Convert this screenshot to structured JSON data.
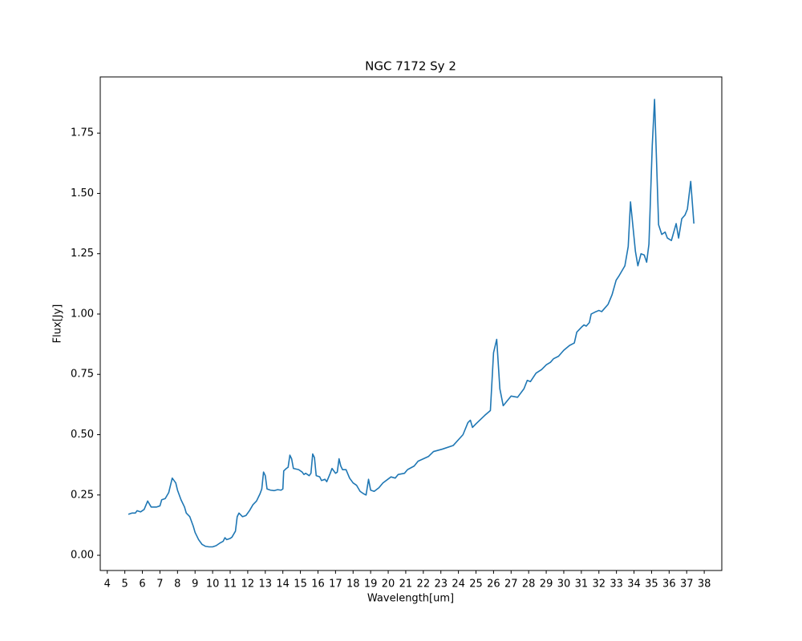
{
  "chart_data": {
    "type": "line",
    "title": "NGC 7172 Sy 2",
    "x_label": "Wavelength[um]",
    "y_label": "Flux[Jy]",
    "color": "#1f77b4",
    "xlim": [
      3.6,
      39.0
    ],
    "ylim": [
      -0.063,
      1.983
    ],
    "xticks": [
      4,
      5,
      6,
      7,
      8,
      9,
      10,
      11,
      12,
      13,
      14,
      15,
      16,
      17,
      18,
      19,
      20,
      21,
      22,
      23,
      24,
      25,
      26,
      27,
      28,
      29,
      30,
      31,
      32,
      33,
      34,
      35,
      36,
      37,
      38
    ],
    "yticks": [
      {
        "value": 0,
        "label": "0.00"
      },
      {
        "value": 0.25,
        "label": "0.25"
      },
      {
        "value": 0.5,
        "label": "0.50"
      },
      {
        "value": 0.75,
        "label": "0.75"
      },
      {
        "value": 1,
        "label": "1.00"
      },
      {
        "value": 1.25,
        "label": "1.25"
      },
      {
        "value": 1.5,
        "label": "1.50"
      },
      {
        "value": 1.75,
        "label": "1.75"
      }
    ],
    "x": [
      5.2,
      5.4,
      5.6,
      5.7,
      5.9,
      6.1,
      6.3,
      6.5,
      6.8,
      7.0,
      7.1,
      7.3,
      7.5,
      7.6,
      7.7,
      7.9,
      8.0,
      8.2,
      8.4,
      8.5,
      8.7,
      8.9,
      9.0,
      9.2,
      9.4,
      9.6,
      9.8,
      10.0,
      10.2,
      10.4,
      10.6,
      10.7,
      10.8,
      11.0,
      11.1,
      11.3,
      11.4,
      11.5,
      11.7,
      11.9,
      12.1,
      12.3,
      12.5,
      12.7,
      12.8,
      12.9,
      13.0,
      13.1,
      13.3,
      13.5,
      13.7,
      13.9,
      14.0,
      14.05,
      14.2,
      14.3,
      14.4,
      14.5,
      14.6,
      14.9,
      15.1,
      15.2,
      15.3,
      15.5,
      15.6,
      15.7,
      15.8,
      15.9,
      16.1,
      16.2,
      16.4,
      16.5,
      16.7,
      16.8,
      17.0,
      17.1,
      17.2,
      17.3,
      17.4,
      17.6,
      17.8,
      18.0,
      18.2,
      18.4,
      18.6,
      18.74,
      18.88,
      19.0,
      19.2,
      19.47,
      19.7,
      20.16,
      20.4,
      20.57,
      20.93,
      21.1,
      21.48,
      21.7,
      22.0,
      22.3,
      22.58,
      23.08,
      23.7,
      24.26,
      24.54,
      24.68,
      24.8,
      25.0,
      25.5,
      25.82,
      26.0,
      26.18,
      26.36,
      26.55,
      27.0,
      27.37,
      27.73,
      27.92,
      28.1,
      28.42,
      28.74,
      29.01,
      29.24,
      29.42,
      29.7,
      30.0,
      30.33,
      30.6,
      30.74,
      31.0,
      31.15,
      31.28,
      31.46,
      31.56,
      31.83,
      32.0,
      32.16,
      32.34,
      32.52,
      32.75,
      32.98,
      33.16,
      33.48,
      33.67,
      33.8,
      34.08,
      34.22,
      34.4,
      34.58,
      34.72,
      34.85,
      35.04,
      35.17,
      35.4,
      35.58,
      35.77,
      35.9,
      36.13,
      36.4,
      36.54,
      36.72,
      36.9,
      37.04,
      37.23,
      37.41
    ],
    "values": [
      0.17,
      0.175,
      0.175,
      0.185,
      0.18,
      0.19,
      0.225,
      0.2,
      0.2,
      0.205,
      0.23,
      0.235,
      0.26,
      0.29,
      0.32,
      0.3,
      0.27,
      0.23,
      0.2,
      0.175,
      0.16,
      0.12,
      0.095,
      0.065,
      0.045,
      0.037,
      0.035,
      0.035,
      0.04,
      0.05,
      0.058,
      0.073,
      0.065,
      0.07,
      0.075,
      0.1,
      0.16,
      0.175,
      0.16,
      0.165,
      0.185,
      0.21,
      0.225,
      0.255,
      0.275,
      0.345,
      0.33,
      0.275,
      0.27,
      0.268,
      0.272,
      0.27,
      0.275,
      0.35,
      0.36,
      0.365,
      0.415,
      0.4,
      0.36,
      0.355,
      0.345,
      0.335,
      0.34,
      0.33,
      0.34,
      0.42,
      0.405,
      0.33,
      0.325,
      0.31,
      0.315,
      0.305,
      0.34,
      0.36,
      0.34,
      0.345,
      0.4,
      0.37,
      0.355,
      0.355,
      0.32,
      0.3,
      0.29,
      0.265,
      0.255,
      0.25,
      0.315,
      0.27,
      0.265,
      0.28,
      0.3,
      0.325,
      0.32,
      0.335,
      0.34,
      0.355,
      0.37,
      0.39,
      0.4,
      0.41,
      0.43,
      0.44,
      0.455,
      0.5,
      0.55,
      0.56,
      0.53,
      0.545,
      0.58,
      0.6,
      0.84,
      0.895,
      0.69,
      0.62,
      0.66,
      0.655,
      0.69,
      0.725,
      0.72,
      0.755,
      0.77,
      0.79,
      0.8,
      0.815,
      0.825,
      0.85,
      0.87,
      0.88,
      0.925,
      0.945,
      0.955,
      0.95,
      0.965,
      1.0,
      1.01,
      1.015,
      1.01,
      1.025,
      1.04,
      1.08,
      1.14,
      1.16,
      1.2,
      1.28,
      1.465,
      1.26,
      1.2,
      1.25,
      1.245,
      1.215,
      1.29,
      1.7,
      1.89,
      1.37,
      1.33,
      1.34,
      1.315,
      1.305,
      1.375,
      1.315,
      1.395,
      1.41,
      1.435,
      1.55,
      1.375
    ]
  }
}
